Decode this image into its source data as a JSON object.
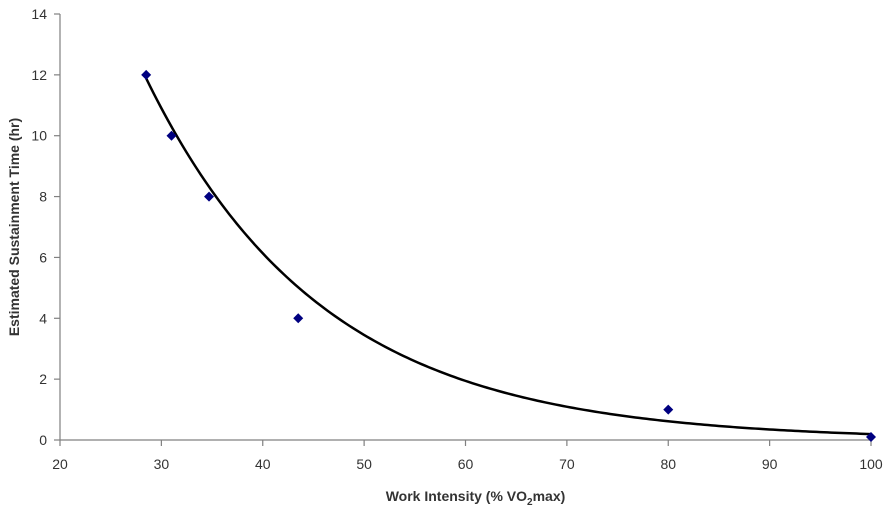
{
  "chart_data": {
    "type": "scatter",
    "title": "",
    "xlabel": "Work Intensity (% VO2max)",
    "xlabel_parts": {
      "pre": "Work Intensity (% VO",
      "sub": "2",
      "post": "max)"
    },
    "ylabel": "Estimated Sustainment Time (hr)",
    "xlim": [
      20,
      100
    ],
    "ylim": [
      0,
      14
    ],
    "xticks": [
      20,
      30,
      40,
      50,
      60,
      70,
      80,
      90,
      100
    ],
    "yticks": [
      0,
      2,
      4,
      6,
      8,
      10,
      12,
      14
    ],
    "grid": false,
    "legend": "none",
    "series": [
      {
        "marker": "diamond",
        "color": "#000080",
        "x": [
          28.5,
          31,
          34.7,
          43.5,
          80,
          100
        ],
        "y": [
          12,
          10,
          8,
          4,
          1,
          0.1
        ]
      }
    ],
    "trendline": {
      "type": "exponential",
      "color": "#000000",
      "x_range": [
        28.5,
        100
      ],
      "a": 61.2,
      "b": 0.0575
    }
  }
}
